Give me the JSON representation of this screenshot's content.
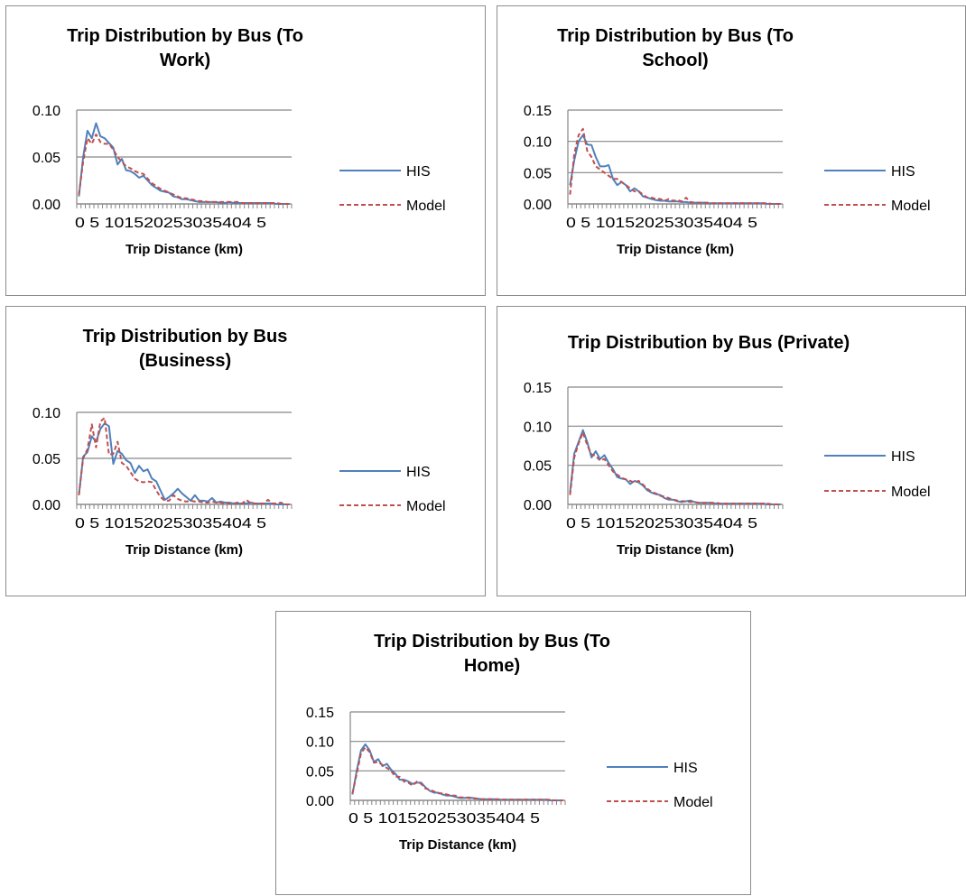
{
  "chart_data": [
    {
      "type": "line",
      "title_lines": [
        "Trip Distribution by Bus (To",
        "Work)"
      ],
      "xlabel": "Trip Distance (km)",
      "ylabel": "",
      "ylim": [
        0,
        0.1
      ],
      "yticks": [
        "0.00",
        "0.05",
        "0.10"
      ],
      "xticks": "0 5 101520253035404 5",
      "x": [
        1,
        2,
        3,
        4,
        5,
        6,
        7,
        8,
        9,
        10,
        11,
        12,
        13,
        14,
        15,
        16,
        17,
        18,
        19,
        20,
        21,
        22,
        23,
        24,
        25,
        26,
        27,
        28,
        29,
        30,
        31,
        32,
        33,
        34,
        35,
        36,
        37,
        38,
        39,
        40,
        41,
        42,
        43,
        44,
        45,
        46,
        47,
        48,
        49,
        50
      ],
      "legend_position": "right",
      "series": [
        {
          "name": "HIS",
          "color": "#4f81bd",
          "dash": "none",
          "values": [
            0.008,
            0.05,
            0.078,
            0.07,
            0.086,
            0.072,
            0.07,
            0.065,
            0.06,
            0.042,
            0.048,
            0.036,
            0.035,
            0.032,
            0.028,
            0.03,
            0.025,
            0.02,
            0.017,
            0.014,
            0.013,
            0.012,
            0.008,
            0.007,
            0.005,
            0.005,
            0.004,
            0.003,
            0.002,
            0.002,
            0.002,
            0.002,
            0.002,
            0.001,
            0.001,
            0.002,
            0.001,
            0.001,
            0.001,
            0.001,
            0.001,
            0.001,
            0.001,
            0.001,
            0.001,
            0.001,
            0.0,
            0.0,
            0.0,
            0.0
          ]
        },
        {
          "name": "Model",
          "color": "#c0504d",
          "dash": "5,3",
          "values": [
            0.01,
            0.045,
            0.07,
            0.064,
            0.074,
            0.066,
            0.064,
            0.064,
            0.058,
            0.05,
            0.045,
            0.04,
            0.038,
            0.035,
            0.033,
            0.032,
            0.027,
            0.022,
            0.019,
            0.016,
            0.014,
            0.012,
            0.01,
            0.008,
            0.006,
            0.006,
            0.005,
            0.004,
            0.003,
            0.003,
            0.002,
            0.002,
            0.002,
            0.002,
            0.002,
            0.002,
            0.002,
            0.002,
            0.001,
            0.001,
            0.001,
            0.001,
            0.001,
            0.001,
            0.001,
            0.001,
            0.001,
            0.0,
            0.0,
            0.0
          ]
        }
      ]
    },
    {
      "type": "line",
      "title_lines": [
        "Trip Distribution by Bus (To",
        "School)"
      ],
      "xlabel": "Trip Distance (km)",
      "ylabel": "",
      "ylim": [
        0,
        0.15
      ],
      "yticks": [
        "0.00",
        "0.05",
        "0.10",
        "0.15"
      ],
      "xticks": "0 5 101520253035404 5",
      "x": [
        1,
        2,
        3,
        4,
        5,
        6,
        7,
        8,
        9,
        10,
        11,
        12,
        13,
        14,
        15,
        16,
        17,
        18,
        19,
        20,
        21,
        22,
        23,
        24,
        25,
        26,
        27,
        28,
        29,
        30,
        31,
        32,
        33,
        34,
        35,
        36,
        37,
        38,
        39,
        40,
        41,
        42,
        43,
        44,
        45,
        46,
        47,
        48,
        49,
        50
      ],
      "legend_position": "right",
      "series": [
        {
          "name": "HIS",
          "color": "#4f81bd",
          "dash": "none",
          "values": [
            0.03,
            0.07,
            0.1,
            0.11,
            0.095,
            0.094,
            0.075,
            0.06,
            0.06,
            0.062,
            0.04,
            0.03,
            0.035,
            0.03,
            0.02,
            0.025,
            0.02,
            0.012,
            0.01,
            0.008,
            0.006,
            0.005,
            0.005,
            0.004,
            0.004,
            0.004,
            0.003,
            0.003,
            0.002,
            0.002,
            0.002,
            0.002,
            0.001,
            0.001,
            0.001,
            0.001,
            0.001,
            0.001,
            0.001,
            0.001,
            0.001,
            0.001,
            0.001,
            0.001,
            0.001,
            0.001,
            0.0,
            0.0,
            0.0,
            0.0
          ]
        },
        {
          "name": "Model",
          "color": "#c0504d",
          "dash": "5,3",
          "values": [
            0.015,
            0.08,
            0.11,
            0.12,
            0.085,
            0.075,
            0.06,
            0.055,
            0.05,
            0.045,
            0.04,
            0.04,
            0.035,
            0.03,
            0.025,
            0.02,
            0.02,
            0.015,
            0.01,
            0.01,
            0.008,
            0.008,
            0.005,
            0.008,
            0.005,
            0.006,
            0.004,
            0.01,
            0.003,
            0.002,
            0.002,
            0.002,
            0.002,
            0.001,
            0.001,
            0.001,
            0.001,
            0.001,
            0.001,
            0.001,
            0.001,
            0.001,
            0.001,
            0.001,
            0.001,
            0.001,
            0.001,
            0.0,
            0.0,
            0.0
          ]
        }
      ]
    },
    {
      "type": "line",
      "title_lines": [
        "Trip Distribution by Bus",
        "(Business)"
      ],
      "xlabel": "Trip Distance (km)",
      "ylabel": "",
      "ylim": [
        0,
        0.1
      ],
      "yticks": [
        "0.00",
        "0.05",
        "0.10"
      ],
      "xticks": "0 5 101520253035404 5",
      "x": [
        1,
        2,
        3,
        4,
        5,
        6,
        7,
        8,
        9,
        10,
        11,
        12,
        13,
        14,
        15,
        16,
        17,
        18,
        19,
        20,
        21,
        22,
        23,
        24,
        25,
        26,
        27,
        28,
        29,
        30,
        31,
        32,
        33,
        34,
        35,
        36,
        37,
        38,
        39,
        40,
        41,
        42,
        43,
        44,
        45,
        46,
        47,
        48,
        49,
        50
      ],
      "legend_position": "right",
      "series": [
        {
          "name": "HIS",
          "color": "#4f81bd",
          "dash": "none",
          "values": [
            0.01,
            0.052,
            0.057,
            0.074,
            0.068,
            0.082,
            0.088,
            0.085,
            0.044,
            0.058,
            0.055,
            0.048,
            0.045,
            0.034,
            0.042,
            0.036,
            0.038,
            0.028,
            0.025,
            0.015,
            0.005,
            0.008,
            0.012,
            0.017,
            0.012,
            0.008,
            0.004,
            0.01,
            0.004,
            0.004,
            0.003,
            0.007,
            0.002,
            0.003,
            0.002,
            0.002,
            0.001,
            0.001,
            0.001,
            0.001,
            0.002,
            0.001,
            0.001,
            0.001,
            0.001,
            0.001,
            0.0,
            0.0,
            0.0,
            0.0
          ]
        },
        {
          "name": "Model",
          "color": "#c0504d",
          "dash": "5,3",
          "values": [
            0.01,
            0.05,
            0.06,
            0.087,
            0.062,
            0.09,
            0.094,
            0.054,
            0.055,
            0.068,
            0.045,
            0.042,
            0.035,
            0.028,
            0.025,
            0.024,
            0.025,
            0.024,
            0.015,
            0.008,
            0.004,
            0.004,
            0.01,
            0.006,
            0.004,
            0.003,
            0.004,
            0.003,
            0.003,
            0.002,
            0.002,
            0.003,
            0.002,
            0.002,
            0.001,
            0.001,
            0.001,
            0.002,
            0.001,
            0.005,
            0.001,
            0.001,
            0.001,
            0.001,
            0.005,
            0.001,
            0.001,
            0.002,
            0.0,
            0.0
          ]
        }
      ]
    },
    {
      "type": "line",
      "title_lines": [
        "Trip Distribution by Bus (Private)"
      ],
      "xlabel": "Trip Distance (km)",
      "ylabel": "",
      "ylim": [
        0,
        0.15
      ],
      "yticks": [
        "0.00",
        "0.05",
        "0.10",
        "0.15"
      ],
      "xticks": "0 5 101520253035404 5",
      "x": [
        1,
        2,
        3,
        4,
        5,
        6,
        7,
        8,
        9,
        10,
        11,
        12,
        13,
        14,
        15,
        16,
        17,
        18,
        19,
        20,
        21,
        22,
        23,
        24,
        25,
        26,
        27,
        28,
        29,
        30,
        31,
        32,
        33,
        34,
        35,
        36,
        37,
        38,
        39,
        40,
        41,
        42,
        43,
        44,
        45,
        46,
        47,
        48,
        49,
        50
      ],
      "legend_position": "right",
      "series": [
        {
          "name": "HIS",
          "color": "#4f81bd",
          "dash": "none",
          "values": [
            0.015,
            0.065,
            0.08,
            0.095,
            0.08,
            0.06,
            0.068,
            0.058,
            0.063,
            0.053,
            0.045,
            0.035,
            0.033,
            0.032,
            0.026,
            0.03,
            0.028,
            0.024,
            0.018,
            0.015,
            0.013,
            0.012,
            0.008,
            0.006,
            0.006,
            0.004,
            0.003,
            0.004,
            0.005,
            0.003,
            0.002,
            0.002,
            0.002,
            0.002,
            0.001,
            0.001,
            0.001,
            0.001,
            0.001,
            0.001,
            0.001,
            0.001,
            0.001,
            0.001,
            0.001,
            0.001,
            0.0,
            0.0,
            0.0,
            0.0
          ]
        },
        {
          "name": "Model",
          "color": "#c0504d",
          "dash": "5,3",
          "values": [
            0.012,
            0.06,
            0.078,
            0.092,
            0.076,
            0.064,
            0.062,
            0.056,
            0.058,
            0.05,
            0.042,
            0.038,
            0.034,
            0.032,
            0.03,
            0.028,
            0.03,
            0.025,
            0.02,
            0.016,
            0.014,
            0.011,
            0.01,
            0.008,
            0.006,
            0.005,
            0.004,
            0.004,
            0.003,
            0.003,
            0.002,
            0.002,
            0.002,
            0.002,
            0.002,
            0.001,
            0.001,
            0.001,
            0.001,
            0.001,
            0.001,
            0.001,
            0.001,
            0.001,
            0.001,
            0.001,
            0.001,
            0.0,
            0.0,
            0.0
          ]
        }
      ]
    },
    {
      "type": "line",
      "title_lines": [
        "Trip Distribution by Bus (To",
        "Home)"
      ],
      "xlabel": "Trip Distance (km)",
      "ylabel": "",
      "ylim": [
        0,
        0.15
      ],
      "yticks": [
        "0.00",
        "0.05",
        "0.10",
        "0.15"
      ],
      "xticks": "0 5 101520253035404 5",
      "x": [
        1,
        2,
        3,
        4,
        5,
        6,
        7,
        8,
        9,
        10,
        11,
        12,
        13,
        14,
        15,
        16,
        17,
        18,
        19,
        20,
        21,
        22,
        23,
        24,
        25,
        26,
        27,
        28,
        29,
        30,
        31,
        32,
        33,
        34,
        35,
        36,
        37,
        38,
        39,
        40,
        41,
        42,
        43,
        44,
        45,
        46,
        47,
        48,
        49,
        50
      ],
      "legend_position": "right",
      "series": [
        {
          "name": "HIS",
          "color": "#4f81bd",
          "dash": "none",
          "values": [
            0.01,
            0.05,
            0.085,
            0.095,
            0.085,
            0.065,
            0.07,
            0.058,
            0.062,
            0.052,
            0.045,
            0.035,
            0.035,
            0.032,
            0.028,
            0.03,
            0.03,
            0.022,
            0.016,
            0.013,
            0.013,
            0.01,
            0.008,
            0.008,
            0.006,
            0.004,
            0.004,
            0.005,
            0.004,
            0.003,
            0.002,
            0.002,
            0.002,
            0.002,
            0.001,
            0.001,
            0.001,
            0.001,
            0.001,
            0.001,
            0.001,
            0.001,
            0.001,
            0.001,
            0.001,
            0.001,
            0.0,
            0.0,
            0.0,
            0.0
          ]
        },
        {
          "name": "Model",
          "color": "#c0504d",
          "dash": "5,3",
          "values": [
            0.012,
            0.045,
            0.08,
            0.09,
            0.082,
            0.064,
            0.065,
            0.06,
            0.055,
            0.05,
            0.04,
            0.04,
            0.032,
            0.03,
            0.025,
            0.032,
            0.028,
            0.02,
            0.018,
            0.015,
            0.012,
            0.012,
            0.01,
            0.008,
            0.008,
            0.005,
            0.005,
            0.004,
            0.003,
            0.003,
            0.002,
            0.002,
            0.002,
            0.002,
            0.002,
            0.001,
            0.001,
            0.001,
            0.001,
            0.001,
            0.001,
            0.001,
            0.001,
            0.001,
            0.001,
            0.001,
            0.001,
            0.0,
            0.0,
            0.0
          ]
        }
      ]
    }
  ]
}
